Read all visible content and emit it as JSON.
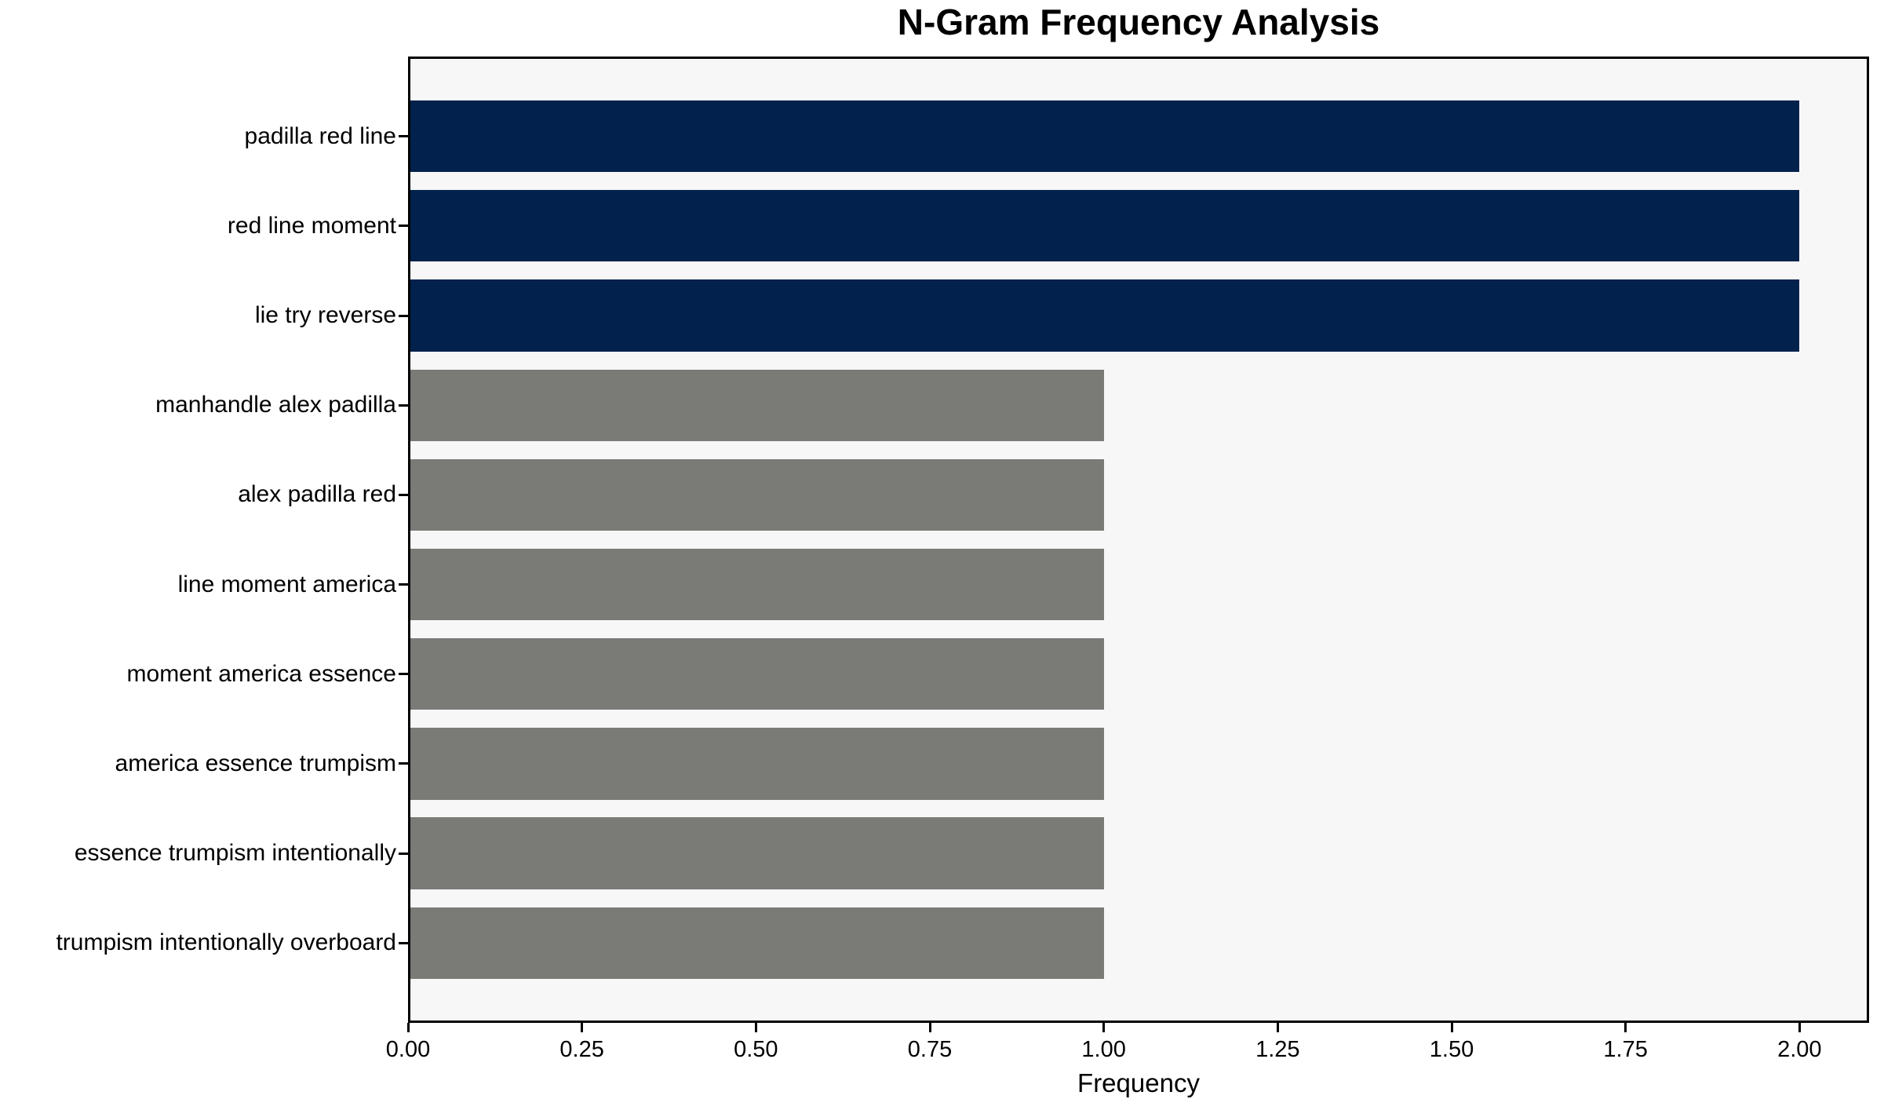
{
  "chart_data": {
    "type": "bar",
    "orientation": "horizontal",
    "title": "N-Gram Frequency Analysis",
    "xlabel": "Frequency",
    "ylabel": "",
    "categories": [
      "padilla red line",
      "red line moment",
      "lie try reverse",
      "manhandle alex padilla",
      "alex padilla red",
      "line moment america",
      "moment america essence",
      "america essence trumpism",
      "essence trumpism intentionally",
      "trumpism intentionally overboard"
    ],
    "values": [
      2,
      2,
      2,
      1,
      1,
      1,
      1,
      1,
      1,
      1
    ],
    "bar_colors": [
      "#02214c",
      "#02214c",
      "#02214c",
      "#7a7a77",
      "#7a7a77",
      "#7a7a77",
      "#7a7a77",
      "#7a7a77",
      "#7a7a77",
      "#7a7a77"
    ],
    "xlim": [
      0,
      2.1
    ],
    "x_tick_values": [
      0,
      0.25,
      0.5,
      0.75,
      1.0,
      1.25,
      1.5,
      1.75,
      2.0
    ],
    "x_tick_labels": [
      "0.00",
      "0.25",
      "0.50",
      "0.75",
      "1.00",
      "1.25",
      "1.50",
      "1.75",
      "2.00"
    ],
    "grid": false,
    "legend": false,
    "colors": {
      "high_frequency_bar": "#02214c",
      "low_frequency_bar": "#7a7a77",
      "plot_background": "#f7f7f7",
      "figure_background": "#ffffff",
      "axis": "#000000",
      "text": "#000000"
    }
  }
}
